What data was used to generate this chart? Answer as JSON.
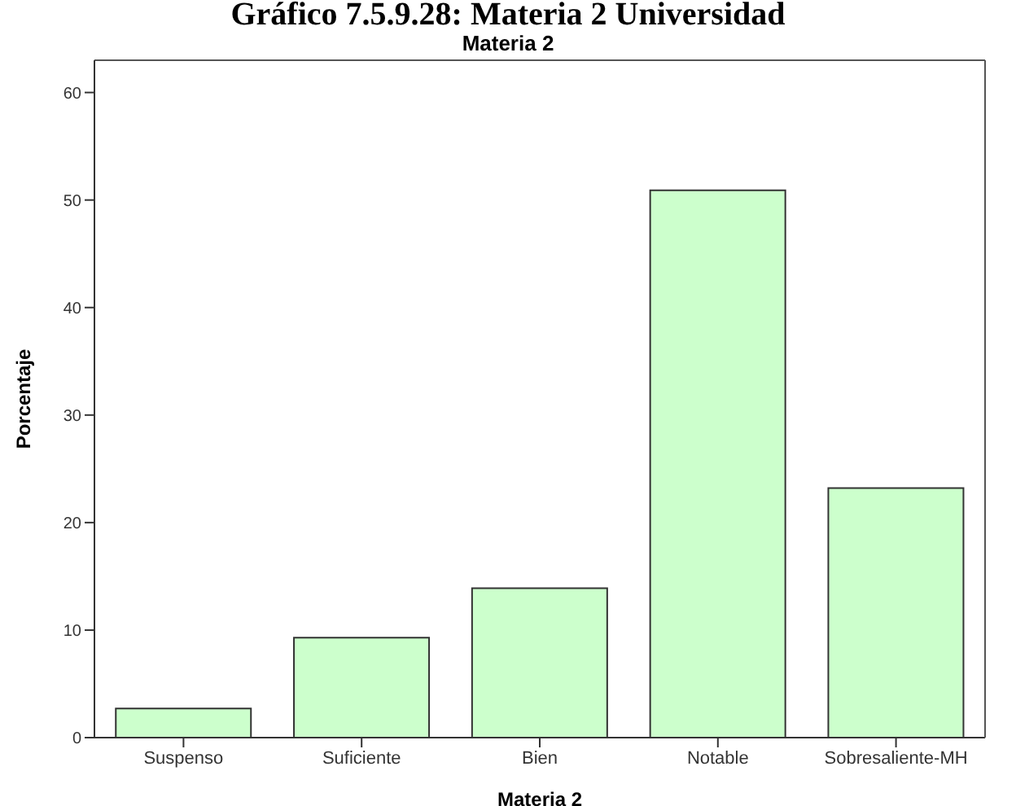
{
  "chart_data": {
    "type": "bar",
    "title": "Gráfico 7.5.9.28: Materia 2 Universidad",
    "subtitle": "Materia 2",
    "xlabel": "Materia 2",
    "ylabel": "Porcentaje",
    "categories": [
      "Suspenso",
      "Suficiente",
      "Bien",
      "Notable",
      "Sobresaliente-MH"
    ],
    "values": [
      2.7,
      9.3,
      13.9,
      50.9,
      23.2
    ],
    "color": "#ccffcc",
    "ylim": [
      0,
      63
    ],
    "yticks": [
      0,
      10,
      20,
      30,
      40,
      50,
      60
    ],
    "grid": false
  }
}
